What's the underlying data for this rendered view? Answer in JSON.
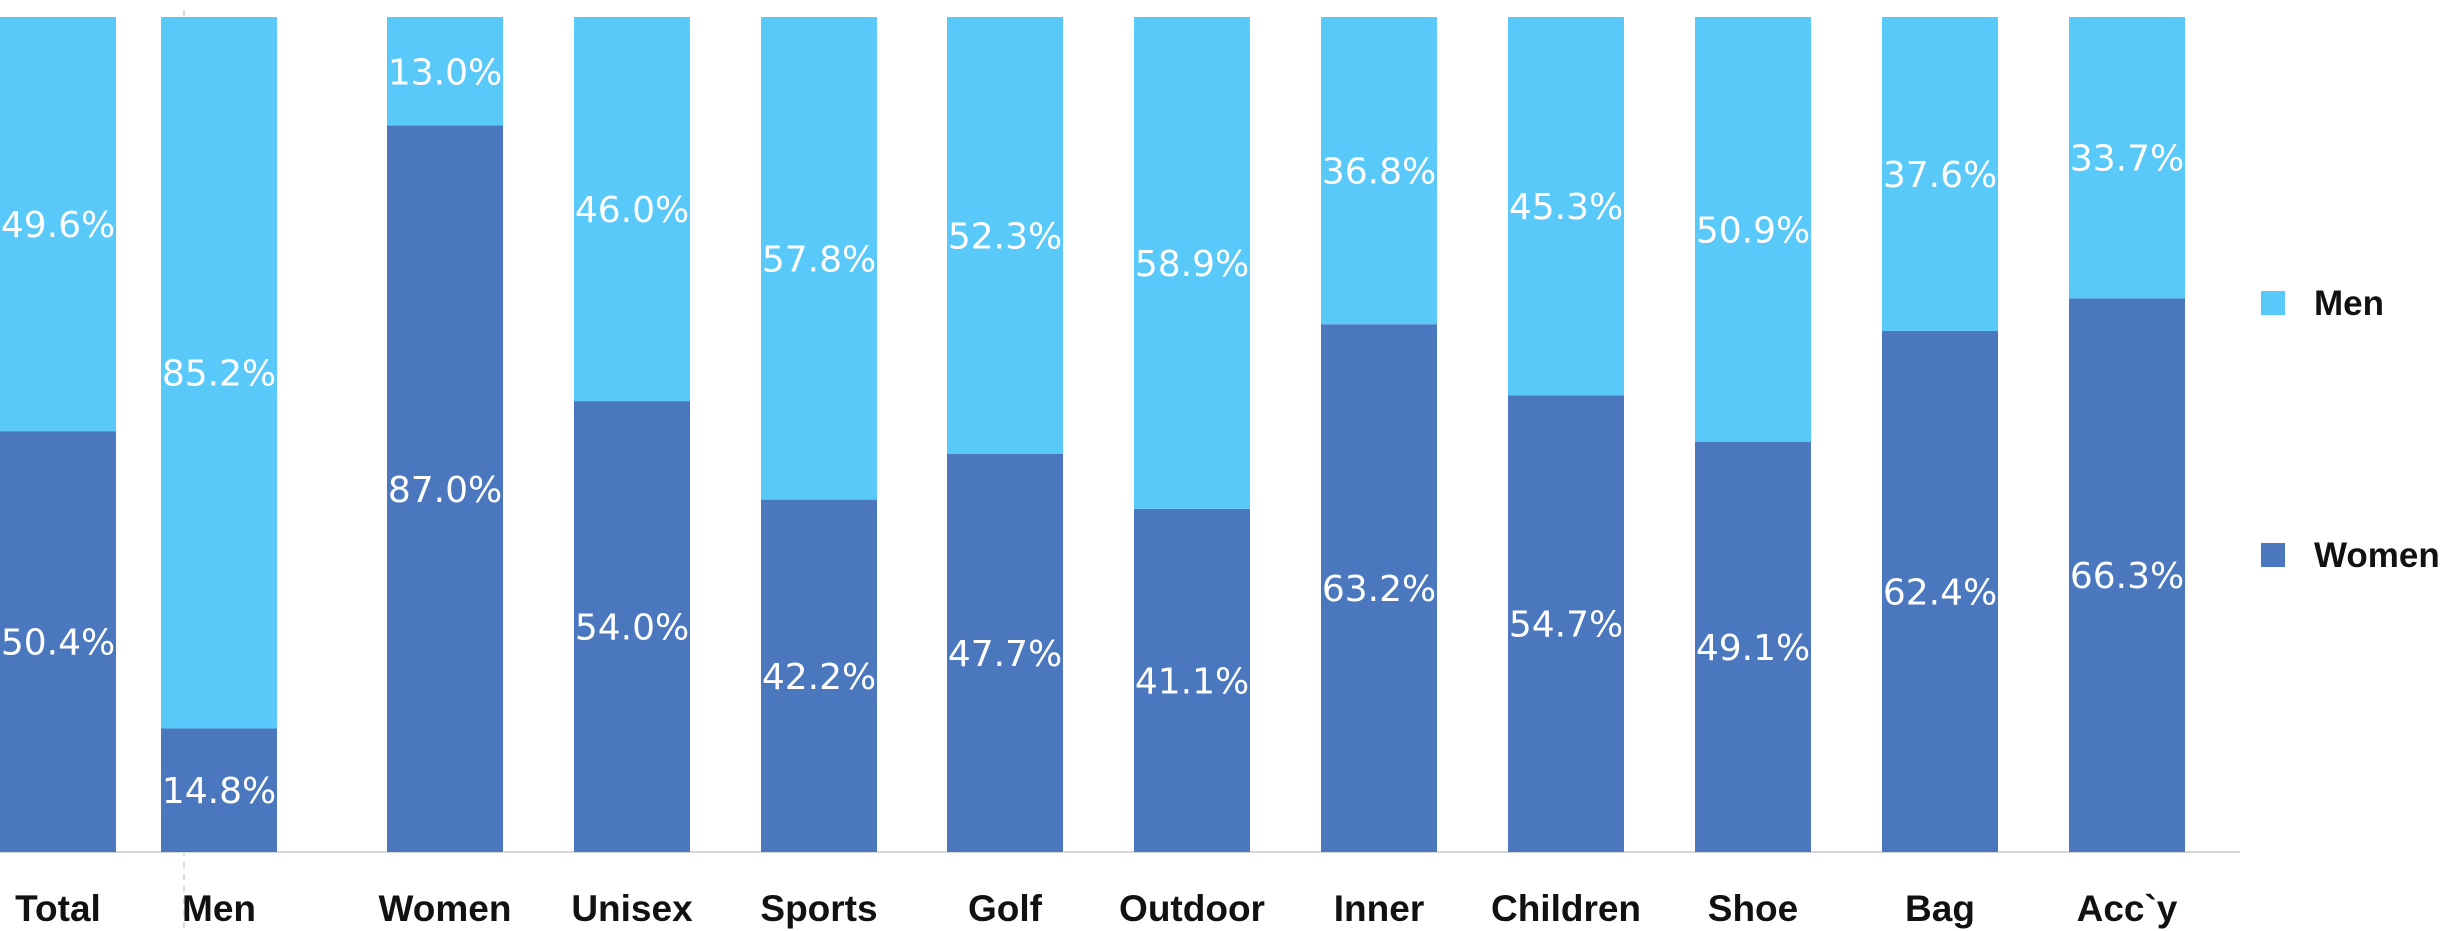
{
  "chart_data": {
    "type": "bar",
    "stacked": true,
    "categories": [
      "Total",
      "Men",
      "Women",
      "Unisex",
      "Sports",
      "Golf",
      "Outdoor",
      "Inner",
      "Children",
      "Shoe",
      "Bag",
      "Acc`y"
    ],
    "series": [
      {
        "name": "Women",
        "values": [
          50.4,
          14.8,
          87.0,
          54.0,
          42.2,
          47.7,
          41.1,
          63.2,
          54.7,
          49.1,
          62.4,
          66.3
        ]
      },
      {
        "name": "Men",
        "values": [
          49.6,
          85.2,
          13.0,
          46.0,
          57.8,
          52.3,
          58.9,
          36.8,
          45.3,
          50.9,
          37.6,
          33.7
        ]
      }
    ],
    "value_labels": {
      "Women": [
        "50.4%",
        "14.8%",
        "87.0%",
        "54.0%",
        "42.2%",
        "47.7%",
        "41.1%",
        "63.2%",
        "54.7%",
        "49.1%",
        "62.4%",
        "66.3%"
      ],
      "Men": [
        "49.6%",
        "85.2%",
        "13.0%",
        "46.0%",
        "57.8%",
        "52.3%",
        "58.9%",
        "36.8%",
        "45.3%",
        "50.9%",
        "37.6%",
        "33.7%"
      ]
    },
    "ylim": [
      0,
      100
    ],
    "colors": {
      "Women": "#4a77be",
      "Men": "#58c9f8"
    },
    "legend": {
      "position": "right",
      "entries": [
        "Men",
        "Women"
      ]
    },
    "grid": false,
    "title": "",
    "xlabel": "",
    "ylabel": ""
  }
}
